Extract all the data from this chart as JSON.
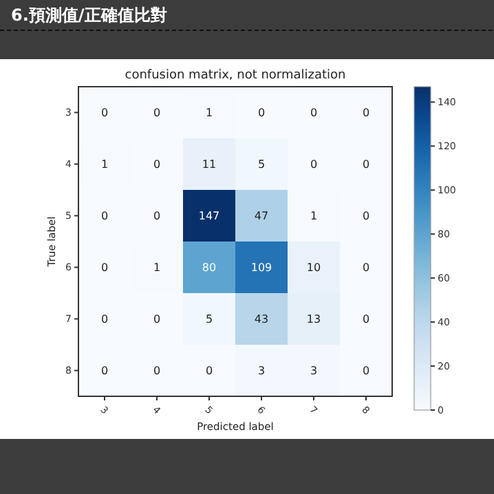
{
  "chart_data": {
    "type": "heatmap",
    "title": "6.預測值/正確值比對",
    "subtitle": "confusion matrix, not normalization",
    "xlabel": "Predicted label",
    "ylabel": "True label",
    "categories": [
      "3",
      "4",
      "5",
      "6",
      "7",
      "8"
    ],
    "y_categories": [
      "3",
      "4",
      "5",
      "6",
      "7",
      "8"
    ],
    "cells": [
      [
        0,
        0,
        1,
        0,
        0,
        0
      ],
      [
        1,
        0,
        11,
        5,
        0,
        0
      ],
      [
        0,
        0,
        147,
        47,
        1,
        0
      ],
      [
        0,
        1,
        80,
        109,
        10,
        0
      ],
      [
        0,
        0,
        5,
        43,
        13,
        0
      ],
      [
        0,
        0,
        0,
        3,
        3,
        0
      ]
    ],
    "data_labels": true,
    "clim": [
      0,
      147
    ],
    "cticks": [
      0,
      20,
      40,
      60,
      80,
      100,
      120,
      140
    ]
  }
}
